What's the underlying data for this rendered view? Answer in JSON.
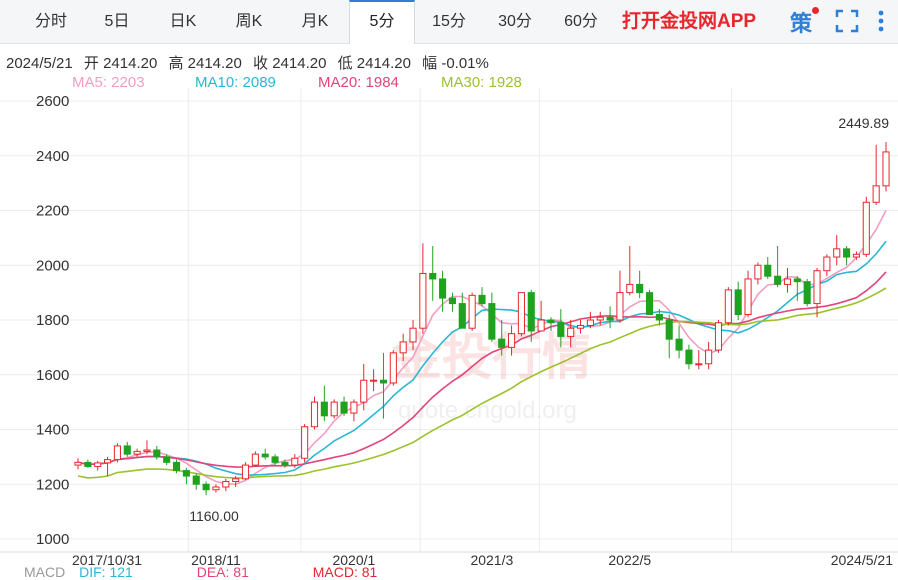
{
  "tabs": [
    {
      "label": "分时",
      "active": false
    },
    {
      "label": "5日",
      "active": false
    },
    {
      "label": "日K",
      "active": false
    },
    {
      "label": "周K",
      "active": false
    },
    {
      "label": "月K",
      "active": false
    },
    {
      "label": "5分",
      "active": true
    },
    {
      "label": "15分",
      "active": false
    },
    {
      "label": "30分",
      "active": false
    },
    {
      "label": "60分",
      "active": false
    }
  ],
  "app_link": "打开金投网APP",
  "strategy_label": "策",
  "info": {
    "date": "2024/5/21",
    "open": "开 2414.20",
    "high": "高 2414.20",
    "close": "收 2414.20",
    "low": "低 2414.20",
    "change": "幅 -0.01%"
  },
  "ma_legend": [
    {
      "label": "MA5: 2203",
      "color": "#f19ec2"
    },
    {
      "label": "MA10: 2089",
      "color": "#2ab7d4"
    },
    {
      "label": "MA20: 1984",
      "color": "#e0457b"
    },
    {
      "label": "MA30: 1928",
      "color": "#9bc22a"
    }
  ],
  "watermark": {
    "cn": "金投行情",
    "en": "quote.cngold.org"
  },
  "bottom_row": [
    {
      "label": "MACD",
      "color": "#999999"
    },
    {
      "label": "DIF: 121",
      "color": "#2ab7d4"
    },
    {
      "label": "DEA: 81",
      "color": "#e0457b"
    },
    {
      "label": "MACD: 81",
      "color": "#e8262d"
    }
  ],
  "chart_data": {
    "type": "candlestick",
    "ylim": [
      1000,
      2600
    ],
    "yticks": [
      1000,
      1200,
      1400,
      1600,
      1800,
      2000,
      2200,
      2400,
      2600
    ],
    "xtick_labels": [
      "2017/10/31",
      "2018/11",
      "2020/1",
      "2021/3",
      "2022/5",
      "2024/5/21"
    ],
    "annotations": {
      "high": "2449.89",
      "low": "1160.00"
    },
    "up_color": "#e8262d",
    "down_color": "#1fa31f",
    "candles": [
      [
        1270,
        1295,
        1255,
        1280
      ],
      [
        1280,
        1290,
        1260,
        1265
      ],
      [
        1265,
        1285,
        1250,
        1278
      ],
      [
        1278,
        1300,
        1230,
        1290
      ],
      [
        1290,
        1350,
        1280,
        1340
      ],
      [
        1340,
        1355,
        1300,
        1310
      ],
      [
        1310,
        1330,
        1300,
        1320
      ],
      [
        1320,
        1360,
        1310,
        1325
      ],
      [
        1325,
        1340,
        1290,
        1300
      ],
      [
        1300,
        1310,
        1270,
        1280
      ],
      [
        1280,
        1290,
        1240,
        1250
      ],
      [
        1250,
        1260,
        1200,
        1230
      ],
      [
        1230,
        1240,
        1180,
        1200
      ],
      [
        1200,
        1210,
        1160,
        1180
      ],
      [
        1180,
        1200,
        1170,
        1190
      ],
      [
        1190,
        1220,
        1175,
        1210
      ],
      [
        1210,
        1230,
        1190,
        1220
      ],
      [
        1220,
        1280,
        1215,
        1270
      ],
      [
        1270,
        1320,
        1265,
        1310
      ],
      [
        1310,
        1330,
        1290,
        1300
      ],
      [
        1300,
        1310,
        1270,
        1280
      ],
      [
        1280,
        1290,
        1260,
        1270
      ],
      [
        1270,
        1310,
        1260,
        1295
      ],
      [
        1295,
        1420,
        1280,
        1410
      ],
      [
        1410,
        1520,
        1400,
        1500
      ],
      [
        1500,
        1560,
        1430,
        1450
      ],
      [
        1450,
        1510,
        1440,
        1500
      ],
      [
        1500,
        1520,
        1450,
        1460
      ],
      [
        1460,
        1510,
        1430,
        1500
      ],
      [
        1500,
        1640,
        1470,
        1580
      ],
      [
        1580,
        1620,
        1540,
        1580
      ],
      [
        1580,
        1680,
        1440,
        1570
      ],
      [
        1570,
        1690,
        1560,
        1680
      ],
      [
        1680,
        1750,
        1650,
        1720
      ],
      [
        1720,
        1800,
        1690,
        1770
      ],
      [
        1770,
        2080,
        1750,
        1970
      ],
      [
        1970,
        2070,
        1870,
        1950
      ],
      [
        1950,
        1980,
        1830,
        1880
      ],
      [
        1880,
        1900,
        1830,
        1860
      ],
      [
        1860,
        1900,
        1770,
        1770
      ],
      [
        1770,
        1900,
        1760,
        1890
      ],
      [
        1890,
        1920,
        1850,
        1860
      ],
      [
        1860,
        1900,
        1720,
        1730
      ],
      [
        1730,
        1800,
        1670,
        1700
      ],
      [
        1700,
        1780,
        1670,
        1750
      ],
      [
        1750,
        1900,
        1740,
        1900
      ],
      [
        1900,
        1910,
        1720,
        1760
      ],
      [
        1760,
        1870,
        1760,
        1800
      ],
      [
        1800,
        1810,
        1760,
        1790
      ],
      [
        1790,
        1840,
        1700,
        1740
      ],
      [
        1740,
        1800,
        1700,
        1770
      ],
      [
        1770,
        1800,
        1750,
        1780
      ],
      [
        1780,
        1830,
        1770,
        1800
      ],
      [
        1800,
        1830,
        1780,
        1810
      ],
      [
        1810,
        1850,
        1770,
        1800
      ],
      [
        1800,
        1980,
        1790,
        1900
      ],
      [
        1900,
        2070,
        1890,
        1930
      ],
      [
        1930,
        1980,
        1880,
        1900
      ],
      [
        1900,
        1910,
        1820,
        1820
      ],
      [
        1820,
        1840,
        1780,
        1800
      ],
      [
        1800,
        1820,
        1660,
        1730
      ],
      [
        1730,
        1780,
        1660,
        1690
      ],
      [
        1690,
        1710,
        1620,
        1640
      ],
      [
        1640,
        1690,
        1620,
        1640
      ],
      [
        1640,
        1720,
        1620,
        1690
      ],
      [
        1690,
        1800,
        1680,
        1790
      ],
      [
        1790,
        1920,
        1780,
        1910
      ],
      [
        1910,
        1940,
        1800,
        1820
      ],
      [
        1820,
        1980,
        1810,
        1950
      ],
      [
        1950,
        2010,
        1930,
        2000
      ],
      [
        2000,
        2030,
        1950,
        1960
      ],
      [
        1960,
        2070,
        1920,
        1930
      ],
      [
        1930,
        1990,
        1900,
        1950
      ],
      [
        1950,
        1960,
        1870,
        1940
      ],
      [
        1940,
        1950,
        1850,
        1860
      ],
      [
        1860,
        1990,
        1810,
        1980
      ],
      [
        1980,
        2040,
        1960,
        2030
      ],
      [
        2030,
        2110,
        2000,
        2060
      ],
      [
        2060,
        2070,
        2000,
        2030
      ],
      [
        2030,
        2050,
        2020,
        2040
      ],
      [
        2040,
        2250,
        2030,
        2230
      ],
      [
        2230,
        2440,
        2220,
        2290
      ],
      [
        2290,
        2450,
        2270,
        2414
      ]
    ]
  }
}
